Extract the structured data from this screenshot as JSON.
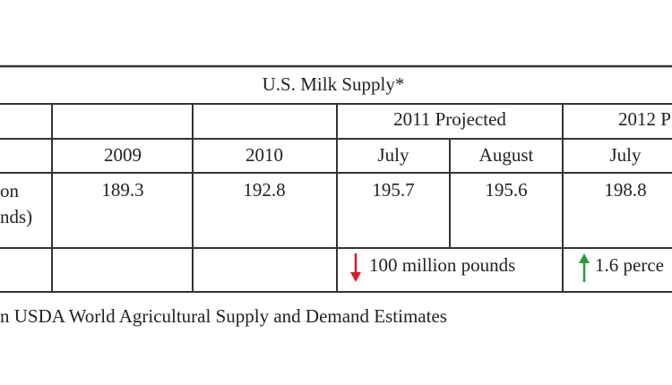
{
  "table": {
    "title": "U.S. Milk Supply*",
    "group_headers": [
      "2011 Projected",
      "2012 P"
    ],
    "column_headers": [
      "2009",
      "2010",
      "July",
      "August",
      "July"
    ],
    "row_label": [
      "on",
      "nds)"
    ],
    "values": [
      "189.3",
      "192.8",
      "195.7",
      "195.6",
      "198.8"
    ],
    "changes": [
      "100 million pounds",
      "1.6 perce"
    ]
  },
  "footnote": "n USDA World Agricultural Supply and Demand Estimates"
}
